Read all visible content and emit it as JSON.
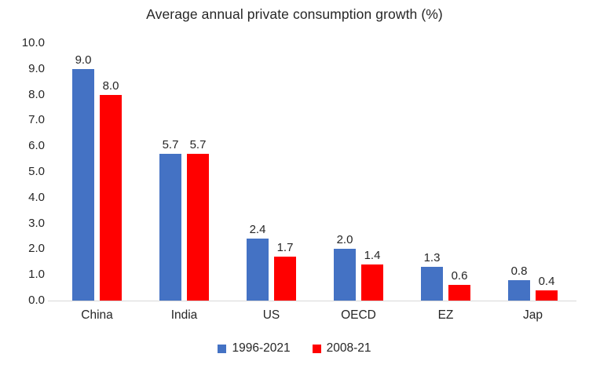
{
  "chart_data": {
    "type": "bar",
    "title": "Average annual private consumption growth (%)",
    "categories": [
      "China",
      "India",
      "US",
      "OECD",
      "EZ",
      "Jap"
    ],
    "series": [
      {
        "name": "1996-2021",
        "color": "#4472C4",
        "values": [
          9.0,
          5.7,
          2.4,
          2.0,
          1.3,
          0.8
        ]
      },
      {
        "name": "2008-21",
        "color": "#FF0000",
        "values": [
          8.0,
          5.7,
          1.7,
          1.4,
          0.6,
          0.4
        ]
      }
    ],
    "ylim": [
      0,
      10
    ],
    "ytick_step": 1.0,
    "ytick_labels": [
      "0.0",
      "1.0",
      "2.0",
      "3.0",
      "4.0",
      "5.0",
      "6.0",
      "7.0",
      "8.0",
      "9.0",
      "10.0"
    ],
    "data_label_format": "one_decimal",
    "grid": false,
    "legend_position": "bottom",
    "colors": {
      "axis_line": "#D9D9D9",
      "text": "#262626",
      "background": "#FFFFFF"
    }
  }
}
